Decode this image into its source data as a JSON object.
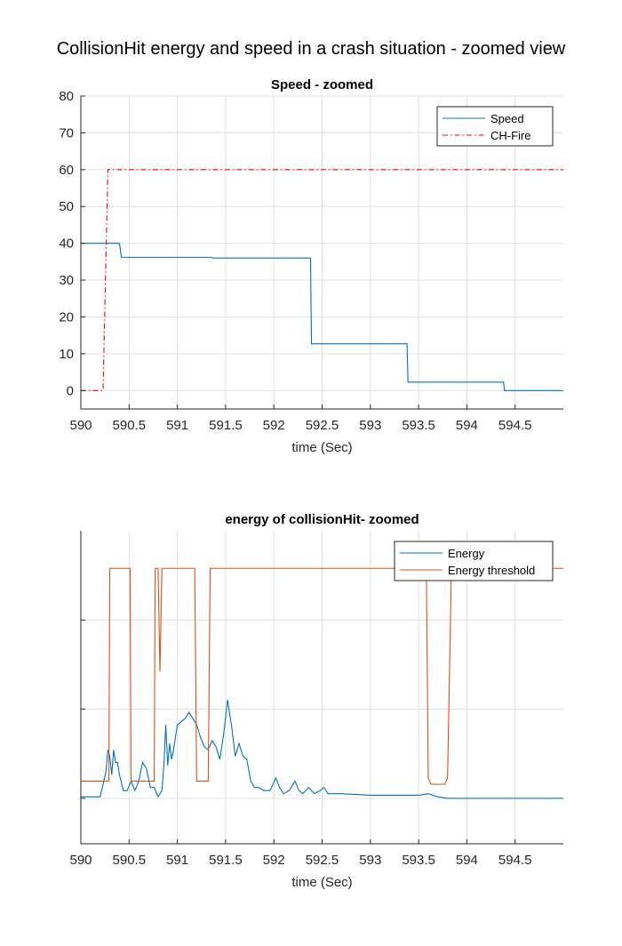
{
  "figure_title": "CollisionHit energy and speed in a crash situation - zoomed view",
  "colors": {
    "speed": "#0072BD",
    "fire": "#FF0000",
    "energy": "#0072BD",
    "threshold": "#D95319",
    "grid": "#DFDFDF",
    "axis": "#262626"
  },
  "chart_data": [
    {
      "type": "line",
      "title": "Speed - zoomed",
      "xlabel": "time (Sec)",
      "ylabel": "",
      "xlim": [
        590,
        595
      ],
      "ylim": [
        -5,
        80
      ],
      "grid": true,
      "legend_position": "top-right",
      "x_ticks": [
        590,
        590.5,
        591,
        591.5,
        592,
        592.5,
        593,
        593.5,
        594,
        594.5
      ],
      "x_tick_labels": [
        "590",
        "590.5",
        "591",
        "591.5",
        "592",
        "592.5",
        "593",
        "593.5",
        "594",
        "594.5"
      ],
      "y_ticks": [
        0,
        10,
        20,
        30,
        40,
        50,
        60,
        70,
        80
      ],
      "y_tick_labels": [
        "0",
        "10",
        "20",
        "30",
        "40",
        "50",
        "60",
        "70",
        "80"
      ],
      "series": [
        {
          "name": "Speed",
          "style": "solid",
          "x": [
            590,
            590.4,
            590.42,
            591.35,
            591.37,
            592.38,
            592.39,
            593.38,
            593.39,
            594.38,
            594.39,
            595
          ],
          "y": [
            40,
            40,
            36.2,
            36.2,
            36,
            36,
            12.7,
            12.7,
            2.3,
            2.3,
            0,
            0
          ]
        },
        {
          "name": "CH-Fire",
          "style": "dashdot",
          "x": [
            590,
            590.23,
            590.28,
            595
          ],
          "y": [
            0,
            0,
            60,
            60
          ]
        }
      ]
    },
    {
      "type": "line",
      "title": "energy of collisionHit- zoomed",
      "xlabel": "time (Sec)",
      "ylabel": "",
      "xlim": [
        590,
        595
      ],
      "ylim": [
        0,
        1
      ],
      "grid": true,
      "legend_position": "top-right",
      "x_ticks": [
        590,
        590.5,
        591,
        591.5,
        592,
        592.5,
        593,
        593.5,
        594,
        594.5
      ],
      "x_tick_labels": [
        "590",
        "590.5",
        "591",
        "591.5",
        "592",
        "592.5",
        "593",
        "593.5",
        "594",
        "594.5"
      ],
      "y_ticks": [
        0.145,
        0.43,
        0.715
      ],
      "y_tick_labels": [
        "",
        "",
        ""
      ],
      "series": [
        {
          "name": "Energy",
          "style": "solid",
          "x": [
            590,
            590.2,
            590.26,
            590.28,
            590.3,
            590.32,
            590.34,
            590.36,
            590.38,
            590.4,
            590.44,
            590.48,
            590.52,
            590.56,
            590.6,
            590.64,
            590.68,
            590.72,
            590.76,
            590.8,
            590.84,
            590.86,
            590.88,
            590.9,
            590.92,
            590.94,
            590.96,
            591.0,
            591.04,
            591.08,
            591.12,
            591.16,
            591.2,
            591.24,
            591.28,
            591.32,
            591.36,
            591.4,
            591.44,
            591.48,
            591.52,
            591.56,
            591.6,
            591.64,
            591.68,
            591.72,
            591.76,
            591.8,
            591.84,
            591.9,
            591.96,
            592.02,
            592.06,
            592.1,
            592.16,
            592.22,
            592.26,
            592.3,
            592.36,
            592.42,
            592.48,
            592.52,
            592.56,
            592.6,
            592.7,
            593.0,
            593.3,
            593.5,
            593.6,
            593.7,
            593.8,
            594.0,
            594.5,
            595.0
          ],
          "y": [
            0.15,
            0.15,
            0.23,
            0.3,
            0.28,
            0.22,
            0.3,
            0.26,
            0.26,
            0.22,
            0.17,
            0.17,
            0.2,
            0.17,
            0.2,
            0.26,
            0.24,
            0.18,
            0.18,
            0.15,
            0.17,
            0.25,
            0.38,
            0.25,
            0.32,
            0.27,
            0.3,
            0.38,
            0.39,
            0.4,
            0.42,
            0.4,
            0.38,
            0.34,
            0.31,
            0.3,
            0.33,
            0.31,
            0.27,
            0.35,
            0.46,
            0.38,
            0.28,
            0.32,
            0.28,
            0.27,
            0.2,
            0.18,
            0.18,
            0.17,
            0.17,
            0.21,
            0.18,
            0.16,
            0.17,
            0.2,
            0.17,
            0.16,
            0.18,
            0.16,
            0.17,
            0.18,
            0.16,
            0.16,
            0.16,
            0.155,
            0.155,
            0.155,
            0.16,
            0.15,
            0.145,
            0.145,
            0.145,
            0.145
          ]
        },
        {
          "name": "Energy threshold",
          "style": "solid",
          "x": [
            590,
            590.29,
            590.3,
            590.51,
            590.52,
            590.76,
            590.77,
            590.8,
            590.82,
            590.84,
            590.86,
            590.88,
            591.18,
            591.2,
            591.32,
            591.34,
            593.58,
            593.6,
            593.63,
            593.77,
            593.8,
            593.84,
            595
          ],
          "y": [
            0.2,
            0.2,
            0.88,
            0.88,
            0.2,
            0.2,
            0.88,
            0.88,
            0.55,
            0.88,
            0.88,
            0.88,
            0.88,
            0.2,
            0.2,
            0.88,
            0.88,
            0.21,
            0.19,
            0.19,
            0.21,
            0.88,
            0.88
          ]
        }
      ]
    }
  ]
}
